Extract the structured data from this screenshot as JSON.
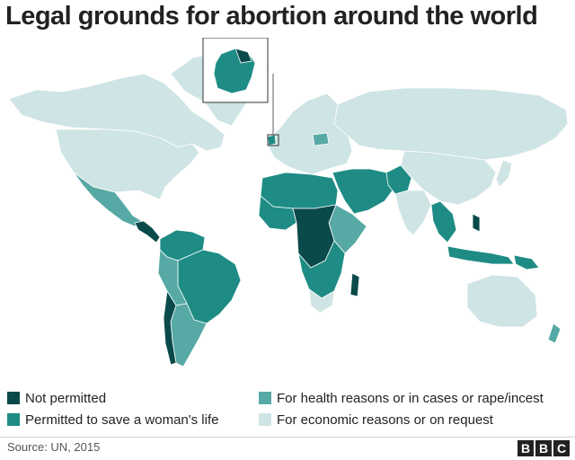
{
  "title": "Legal grounds for abortion around the world",
  "colors": {
    "not_permitted": "#0b4a4a",
    "save_life": "#1e8c85",
    "health": "#57a9a5",
    "on_request": "#cfe4e4",
    "border": "#ffffff",
    "ocean": "#ffffff"
  },
  "legend": [
    {
      "label": "Not permitted",
      "category": "not_permitted"
    },
    {
      "label": "Permitted to save a woman's life",
      "category": "save_life"
    },
    {
      "label": "For health reasons or in cases or rape/incest",
      "category": "health"
    },
    {
      "label": "For economic reasons or on request",
      "category": "on_request"
    }
  ],
  "source": "Source: UN, 2015",
  "logo_text": [
    "B",
    "B",
    "C"
  ]
}
